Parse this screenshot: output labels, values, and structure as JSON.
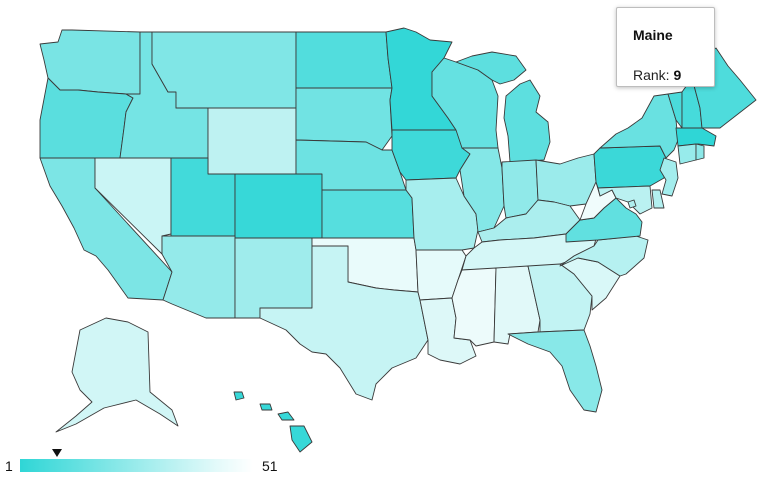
{
  "tooltip": {
    "state": "Maine",
    "rank_label": "Rank:",
    "rank_value": "9"
  },
  "legend": {
    "min_label": "1",
    "max_label": "51",
    "marker_rank": 9,
    "color_low_rank": "#2fd6d6",
    "color_high_rank": "#ffffff"
  },
  "states": [
    {
      "name": "Washington",
      "rank": 20
    },
    {
      "name": "Oregon",
      "rank": 12
    },
    {
      "name": "California",
      "rank": 21
    },
    {
      "name": "Nevada",
      "rank": 41
    },
    {
      "name": "Idaho",
      "rank": 19
    },
    {
      "name": "Montana",
      "rank": 22
    },
    {
      "name": "Wyoming",
      "rank": 38
    },
    {
      "name": "Utah",
      "rank": 6
    },
    {
      "name": "Colorado",
      "rank": 3
    },
    {
      "name": "Arizona",
      "rank": 27
    },
    {
      "name": "New Mexico",
      "rank": 30
    },
    {
      "name": "North Dakota",
      "rank": 10
    },
    {
      "name": "South Dakota",
      "rank": 18
    },
    {
      "name": "Nebraska",
      "rank": 17
    },
    {
      "name": "Kansas",
      "rank": 11
    },
    {
      "name": "Oklahoma",
      "rank": 49
    },
    {
      "name": "Texas",
      "rank": 40
    },
    {
      "name": "Minnesota",
      "rank": 2
    },
    {
      "name": "Iowa",
      "rank": 5
    },
    {
      "name": "Missouri",
      "rank": 32
    },
    {
      "name": "Arkansas",
      "rank": 48
    },
    {
      "name": "Louisiana",
      "rank": 46
    },
    {
      "name": "Wisconsin",
      "rank": 15
    },
    {
      "name": "Illinois",
      "rank": 23
    },
    {
      "name": "Michigan",
      "rank": 13
    },
    {
      "name": "Indiana",
      "rank": 26
    },
    {
      "name": "Ohio",
      "rank": 29
    },
    {
      "name": "Kentucky",
      "rank": 33
    },
    {
      "name": "Tennessee",
      "rank": 44
    },
    {
      "name": "Mississippi",
      "rank": 50
    },
    {
      "name": "Alabama",
      "rank": 47
    },
    {
      "name": "Georgia",
      "rank": 39
    },
    {
      "name": "Florida",
      "rank": 24
    },
    {
      "name": "South Carolina",
      "rank": 45
    },
    {
      "name": "North Carolina",
      "rank": 36
    },
    {
      "name": "Virginia",
      "rank": 14
    },
    {
      "name": "West Virginia",
      "rank": 51
    },
    {
      "name": "Pennsylvania",
      "rank": 4
    },
    {
      "name": "New York",
      "rank": 16
    },
    {
      "name": "Vermont",
      "rank": 8
    },
    {
      "name": "New Hampshire",
      "rank": 7
    },
    {
      "name": "Maine",
      "rank": 9
    },
    {
      "name": "Massachusetts",
      "rank": 1
    },
    {
      "name": "Connecticut",
      "rank": 28
    },
    {
      "name": "Rhode Island",
      "rank": 25
    },
    {
      "name": "New Jersey",
      "rank": 31
    },
    {
      "name": "Delaware",
      "rank": 35
    },
    {
      "name": "Maryland",
      "rank": 37
    },
    {
      "name": "District of Columbia",
      "rank": 34
    },
    {
      "name": "Alaska",
      "rank": 43
    },
    {
      "name": "Hawaii",
      "rank": 3
    }
  ]
}
